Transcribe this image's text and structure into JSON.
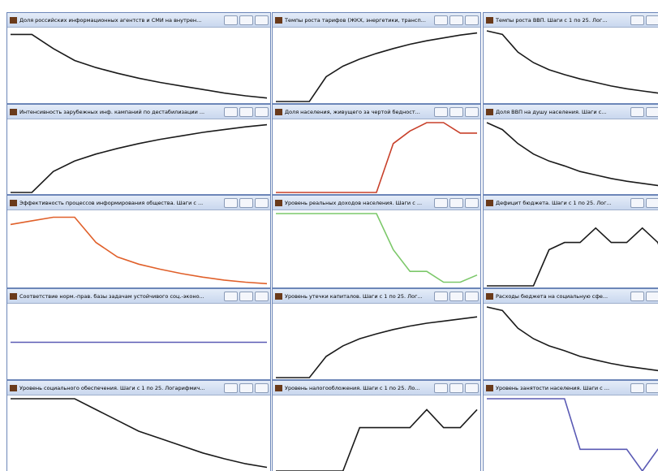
{
  "windows": [
    {
      "title": "Доля российских информационных агентств и СМИ на внутрен...",
      "color": "#1a1a1a",
      "values": [
        95,
        95,
        75,
        58,
        48,
        40,
        33,
        27,
        22,
        17,
        12,
        8,
        5
      ]
    },
    {
      "title": "Темпы роста тарифов (ЖКХ, энергетики, трансп...",
      "color": "#1a1a1a",
      "values": [
        0,
        0,
        0,
        35,
        50,
        60,
        68,
        75,
        81,
        86,
        90,
        94,
        97
      ]
    },
    {
      "title": "Темпы роста ВВП. Шаги с 1 по 25. Лог...",
      "color": "#1a1a1a",
      "values": [
        100,
        95,
        70,
        55,
        45,
        38,
        32,
        27,
        22,
        18,
        15,
        12,
        10
      ]
    },
    {
      "title": "Интенсивность зарубежных инф. кампаний по дестабилизации ...",
      "color": "#1a1a1a",
      "values": [
        0,
        0,
        30,
        45,
        55,
        63,
        70,
        76,
        81,
        86,
        90,
        94,
        97
      ]
    },
    {
      "title": "Доля населения, живущего за чертой бедност...",
      "color": "#c8402a",
      "values": [
        0,
        0,
        0,
        0,
        0,
        0,
        0,
        70,
        88,
        100,
        100,
        85,
        85
      ]
    },
    {
      "title": "Доля ВВП на душу населения. Шаги с...",
      "color": "#1a1a1a",
      "values": [
        100,
        90,
        70,
        55,
        45,
        38,
        30,
        25,
        20,
        16,
        13,
        10,
        8
      ]
    },
    {
      "title": "Эффективность процессов информирования общества. Шаги с ...",
      "color": "#e0602a",
      "values": [
        85,
        90,
        95,
        95,
        60,
        40,
        30,
        23,
        17,
        12,
        8,
        5,
        3
      ]
    },
    {
      "title": "Уровень реальных доходов населения. Шаги с ...",
      "color": "#7cc86a",
      "values": [
        100,
        100,
        100,
        100,
        100,
        100,
        100,
        50,
        20,
        20,
        5,
        5,
        15
      ]
    },
    {
      "title": "Дефицит бюджета. Шаги с 1 по 25. Лог...",
      "color": "#1a1a1a",
      "values": [
        0,
        0,
        0,
        0,
        50,
        60,
        60,
        80,
        60,
        60,
        80,
        60,
        0
      ]
    },
    {
      "title": "Соответствие норм.-прав. базы задачам устойчивого соц.-эконо...",
      "color": "#5a5ab4",
      "values": [
        50,
        50,
        50,
        50,
        50,
        50,
        50,
        50,
        50,
        50,
        50,
        50,
        50
      ]
    },
    {
      "title": "Уровень утечки капиталов. Шаги с 1 по 25. Лог...",
      "color": "#1a1a1a",
      "values": [
        0,
        0,
        0,
        30,
        45,
        55,
        62,
        68,
        73,
        77,
        80,
        83,
        86
      ]
    },
    {
      "title": "Расходы бюджета на социальную сфе...",
      "color": "#1a1a1a",
      "values": [
        100,
        95,
        70,
        55,
        45,
        38,
        30,
        25,
        20,
        16,
        13,
        10,
        8
      ]
    },
    {
      "title": "Уровень социального обеспечения. Шаги с 1 по 25. Логарифмич...",
      "color": "#1a1a1a",
      "values": [
        100,
        100,
        100,
        100,
        85,
        70,
        55,
        45,
        35,
        25,
        17,
        10,
        5
      ]
    },
    {
      "title": "Уровень налогообложения. Шаги с 1 по 25. Ло...",
      "color": "#1a1a1a",
      "values": [
        0,
        0,
        0,
        0,
        0,
        60,
        60,
        60,
        60,
        85,
        60,
        60,
        85
      ]
    },
    {
      "title": "Уровень занятости населения. Шаги с ...",
      "color": "#5a5ab4",
      "values": [
        100,
        100,
        100,
        100,
        100,
        100,
        30,
        30,
        30,
        30,
        0,
        30,
        30
      ]
    }
  ]
}
